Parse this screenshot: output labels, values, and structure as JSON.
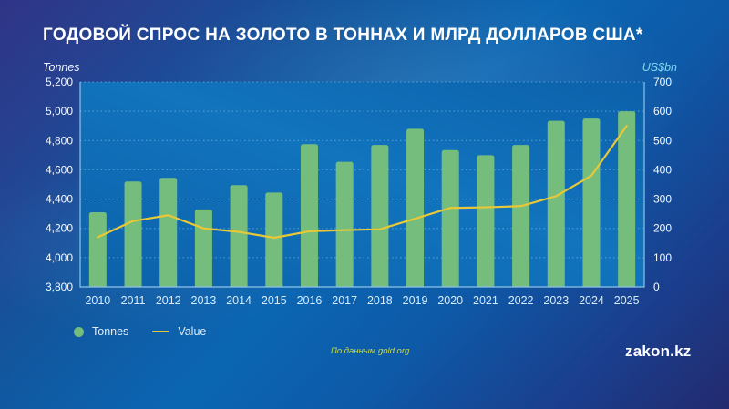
{
  "title": "ГОДОВОЙ СПРОС НА ЗОЛОТО В ТОННАХ И МЛРД ДОЛЛАРОВ США*",
  "axes": {
    "left": {
      "title": "Tonnes",
      "ticks": [
        "5,200",
        "5,000",
        "4,800",
        "4,600",
        "4,400",
        "4,200",
        "4,000",
        "3,800"
      ]
    },
    "right": {
      "title": "US$bn",
      "ticks": [
        "700",
        "600",
        "500",
        "400",
        "300",
        "200",
        "100",
        "0"
      ]
    }
  },
  "legend": {
    "items": [
      {
        "label": "Tonnes",
        "swatch": "dot",
        "color": "#75bd7d"
      },
      {
        "label": "Value",
        "swatch": "line",
        "color": "#e8c839"
      }
    ]
  },
  "footer": {
    "source": "По данным gold.org",
    "brand": "zakon.kz"
  },
  "colors": {
    "bar": "#75bd7d",
    "line": "#e8c839",
    "grid": "rgba(150,205,240,0.55)",
    "axis_border": "#8fc4e8",
    "plot_fill_a": "#0c61aa",
    "plot_fill_b": "#1174bd",
    "y_label": "#f4f9fd",
    "x_label": "#d6ecfa"
  },
  "chart_data": {
    "type": "bar",
    "combo": "bar+line dual axis",
    "title": "ГОДОВОЙ СПРОС НА ЗОЛОТО В ТОННАХ И МЛРД ДОЛЛАРОВ США*",
    "categories": [
      "2010",
      "2011",
      "2012",
      "2013",
      "2014",
      "2015",
      "2016",
      "2017",
      "2018",
      "2019",
      "2020",
      "2021",
      "2022",
      "2023",
      "2024",
      "2025"
    ],
    "series": [
      {
        "name": "Tonnes",
        "type": "bar",
        "axis": "left",
        "color": "#75bd7d",
        "values": [
          4310,
          4520,
          4545,
          4330,
          4495,
          4445,
          4775,
          4655,
          4770,
          4880,
          4735,
          4700,
          4770,
          4935,
          4950,
          5000
        ]
      },
      {
        "name": "Value",
        "type": "line",
        "axis": "right",
        "color": "#e8c839",
        "values": [
          170,
          225,
          245,
          200,
          188,
          168,
          190,
          194,
          197,
          233,
          270,
          272,
          276,
          310,
          380,
          550
        ]
      }
    ],
    "left_ylabel": "Tonnes",
    "right_ylabel": "US$bn",
    "left_ylim": [
      3800,
      5200
    ],
    "right_ylim": [
      0,
      700
    ],
    "left_tick_step": 200,
    "right_tick_step": 100,
    "grid": "horizontal dotted",
    "legend_position": "bottom-left",
    "source_note": "По данным gold.org"
  }
}
